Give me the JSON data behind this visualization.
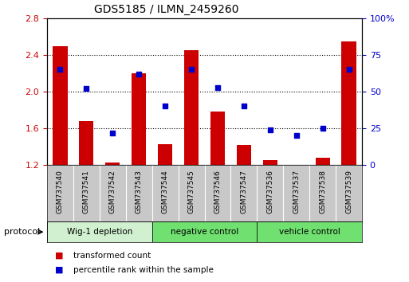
{
  "title": "GDS5185 / ILMN_2459260",
  "samples": [
    "GSM737540",
    "GSM737541",
    "GSM737542",
    "GSM737543",
    "GSM737544",
    "GSM737545",
    "GSM737546",
    "GSM737547",
    "GSM737536",
    "GSM737537",
    "GSM737538",
    "GSM737539"
  ],
  "transformed_count": [
    2.5,
    1.68,
    1.23,
    2.2,
    1.43,
    2.45,
    1.78,
    1.42,
    1.25,
    1.2,
    1.28,
    2.55
  ],
  "percentile_rank": [
    65,
    52,
    22,
    62,
    40,
    65,
    53,
    40,
    24,
    20,
    25,
    65
  ],
  "ylim_left": [
    1.2,
    2.8
  ],
  "ylim_right": [
    0,
    100
  ],
  "yticks_left": [
    1.2,
    1.6,
    2.0,
    2.4,
    2.8
  ],
  "yticks_right": [
    0,
    25,
    50,
    75,
    100
  ],
  "bar_color": "#cc0000",
  "dot_color": "#0000cc",
  "bar_bottom": 1.2,
  "groups": [
    {
      "label": "Wig-1 depletion",
      "start": 0,
      "end": 4,
      "color": "#d0f0d0"
    },
    {
      "label": "negative control",
      "start": 4,
      "end": 8,
      "color": "#70e070"
    },
    {
      "label": "vehicle control",
      "start": 8,
      "end": 12,
      "color": "#70e070"
    }
  ],
  "protocol_label": "protocol",
  "legend_items": [
    {
      "label": "transformed count",
      "color": "#cc0000"
    },
    {
      "label": "percentile rank within the sample",
      "color": "#0000cc"
    }
  ],
  "plot_bg": "#ffffff",
  "sample_label_bg": "#c8c8c8",
  "grid_linestyle": "dotted",
  "grid_color": "black",
  "grid_linewidth": 0.8
}
